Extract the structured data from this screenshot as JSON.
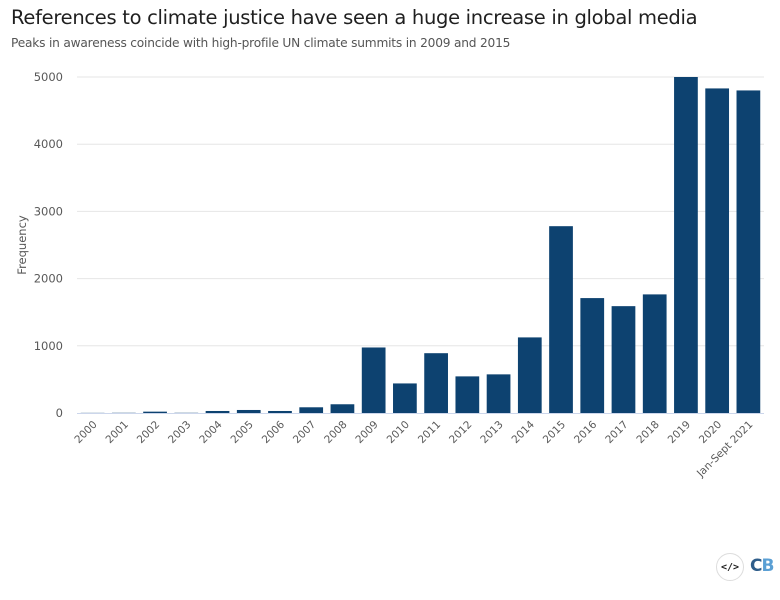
{
  "header": {
    "title": "References to climate justice have seen a huge increase in global media",
    "subtitle": "Peaks in awareness coincide with high-profile UN climate summits in 2009 and 2015"
  },
  "footer": {
    "embed_icon": "code-embed-icon",
    "embed_glyph": "</>",
    "logo_c": "C",
    "logo_b": "B"
  },
  "colors": {
    "bar": "#0d4270",
    "grid": "#e6e6e6",
    "baseline": "#ccd6eb"
  },
  "chart_data": {
    "type": "bar",
    "title": "References to climate justice have seen a huge increase in global media",
    "subtitle": "Peaks in awareness coincide with high-profile UN climate summits in 2009 and 2015",
    "xlabel": "",
    "ylabel": "Frequency",
    "ylim": [
      0,
      5000
    ],
    "yticks": [
      0,
      1000,
      2000,
      3000,
      4000,
      5000
    ],
    "grid": true,
    "legend": "none",
    "categories": [
      "2000",
      "2001",
      "2002",
      "2003",
      "2004",
      "2005",
      "2006",
      "2007",
      "2008",
      "2009",
      "2010",
      "2011",
      "2012",
      "2013",
      "2014",
      "2015",
      "2016",
      "2017",
      "2018",
      "2019",
      "2020",
      "Jan-Sept 2021"
    ],
    "values": [
      2,
      3,
      20,
      3,
      30,
      45,
      30,
      85,
      130,
      975,
      440,
      890,
      545,
      575,
      1125,
      2780,
      1710,
      1590,
      1765,
      5000,
      4830,
      4800
    ]
  }
}
